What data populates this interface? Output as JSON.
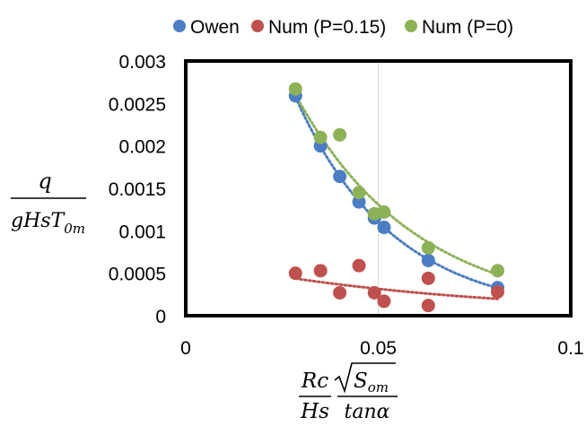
{
  "chart_data": {
    "type": "scatter",
    "xlim": [
      0,
      0.1
    ],
    "ylim": [
      0,
      0.003
    ],
    "x_ticks": [
      "0",
      "0.05",
      "0.1"
    ],
    "x_tick_values": [
      0,
      0.05,
      0.1
    ],
    "y_ticks": [
      "0",
      "0.0005",
      "0.001",
      "0.0015",
      "0.002",
      "0.0025",
      "0.003"
    ],
    "y_tick_values": [
      0,
      0.0005,
      0.001,
      0.0015,
      0.002,
      0.0025,
      0.003
    ],
    "grid": "vertical-major",
    "legend_position": "top",
    "ylabel": {
      "numerator": "q",
      "denominator": "gHsT",
      "denominator_subscript": "0m"
    },
    "xlabel": {
      "numerator_left": "Rc",
      "denominator_left": "Hs",
      "numerator_right": "S",
      "numerator_right_subscript": "om",
      "denominator_right": "tanα"
    },
    "series": [
      {
        "name": "Owen",
        "color": "#4a7dc4",
        "trendline": true,
        "x": [
          0.0285,
          0.035,
          0.04,
          0.045,
          0.049,
          0.0515,
          0.063,
          0.081
        ],
        "y": [
          0.00259,
          0.002,
          0.00164,
          0.00134,
          0.00115,
          0.00104,
          0.00065,
          0.00033
        ]
      },
      {
        "name": "Num (P=0.15)",
        "color": "#c0504d",
        "trendline": true,
        "x": [
          0.0285,
          0.035,
          0.04,
          0.045,
          0.049,
          0.0515,
          0.063,
          0.063,
          0.081
        ],
        "y": [
          0.0005,
          0.00053,
          0.00027,
          0.00059,
          0.00027,
          0.00017,
          0.00044,
          0.00012,
          0.00028
        ]
      },
      {
        "name": "Num (P=0)",
        "color": "#8db255",
        "trendline": true,
        "x": [
          0.0285,
          0.035,
          0.04,
          0.045,
          0.049,
          0.0515,
          0.063,
          0.081
        ],
        "y": [
          0.00267,
          0.0021,
          0.00213,
          0.00145,
          0.0012,
          0.00122,
          0.0008,
          0.00053
        ]
      }
    ]
  }
}
